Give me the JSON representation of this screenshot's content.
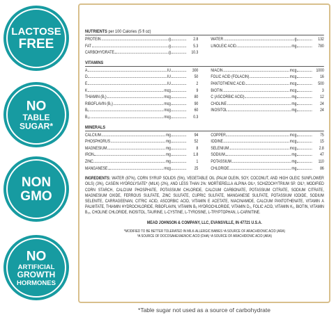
{
  "badges": [
    {
      "lines": [
        "LACTOSE",
        "FREE"
      ]
    },
    {
      "lines": [
        "NO",
        "TABLE",
        "SUGAR*"
      ]
    },
    {
      "lines": [
        "NON",
        "GMO"
      ]
    },
    {
      "lines": [
        "NO",
        "ARTIFICIAL",
        "GROWTH",
        "HORMONES"
      ]
    }
  ],
  "panel": {
    "nutrients": {
      "title": "NUTRIENTS",
      "subtitle": "per 100 Calories (5 fl oz)",
      "left": [
        {
          "name": "PROTEIN",
          "unit": "g",
          "value": "2.8"
        },
        {
          "name": "FAT",
          "unit": "g",
          "value": "5.3"
        },
        {
          "name": "CARBOHYDRATE",
          "unit": "g",
          "value": "10.3"
        }
      ],
      "right": [
        {
          "name": "WATER",
          "unit": "g",
          "value": "132"
        },
        {
          "name": "LINOLEIC ACID",
          "unit": "mg",
          "value": "780"
        }
      ]
    },
    "vitamins": {
      "title": "VITAMINS",
      "left": [
        {
          "name": "A",
          "unit": "IU",
          "value": "300"
        },
        {
          "name": "D",
          "unit": "IU",
          "value": "50"
        },
        {
          "name": "E",
          "unit": "IU",
          "value": "2"
        },
        {
          "name": "K",
          "unit": "mcg",
          "value": "9"
        },
        {
          "name": "THIAMIN (B₁)",
          "unit": "mcg",
          "value": "80"
        },
        {
          "name": "RIBOFLAVIN (B₂)",
          "unit": "mcg",
          "value": "90"
        },
        {
          "name": "B₆",
          "unit": "mcg",
          "value": "60"
        },
        {
          "name": "B₁₂",
          "unit": "mcg",
          "value": "0.3"
        }
      ],
      "right": [
        {
          "name": "NIACIN",
          "unit": "mcg",
          "value": "1000"
        },
        {
          "name": "FOLIC ACID (FOLACIN)",
          "unit": "mcg",
          "value": "16"
        },
        {
          "name": "PANTOTHENIC ACID",
          "unit": "mcg",
          "value": "500"
        },
        {
          "name": "BIOTIN",
          "unit": "mcg",
          "value": "3"
        },
        {
          "name": "C (ASCORBIC ACID)",
          "unit": "mg",
          "value": "12"
        },
        {
          "name": "CHOLINE",
          "unit": "mg",
          "value": "24"
        },
        {
          "name": "INOSITOL",
          "unit": "mg",
          "value": "24"
        }
      ]
    },
    "minerals": {
      "title": "MINERALS",
      "left": [
        {
          "name": "CALCIUM",
          "unit": "mg",
          "value": "94"
        },
        {
          "name": "PHOSPHORUS",
          "unit": "mg",
          "value": "52"
        },
        {
          "name": "MAGNESIUM",
          "unit": "mg",
          "value": "8"
        },
        {
          "name": "IRON",
          "unit": "mg",
          "value": "1.8"
        },
        {
          "name": "ZINC",
          "unit": "mg",
          "value": "1"
        },
        {
          "name": "MANGANESE",
          "unit": "mcg",
          "value": "25"
        }
      ],
      "right": [
        {
          "name": "COPPER",
          "unit": "mcg",
          "value": "75"
        },
        {
          "name": "IODINE",
          "unit": "mcg",
          "value": "15"
        },
        {
          "name": "SELENIUM",
          "unit": "mcg",
          "value": "2.8"
        },
        {
          "name": "SODIUM",
          "unit": "mg",
          "value": "47"
        },
        {
          "name": "POTASSIUM",
          "unit": "mg",
          "value": "110"
        },
        {
          "name": "CHLORIDE",
          "unit": "mg",
          "value": "86"
        }
      ]
    },
    "ingredients": {
      "label": "INGREDIENTS:",
      "text": "WATER (87%), CORN SYRUP SOLIDS (5%), VEGETABLE OIL (PALM OLEIN, SOY, COCONUT, AND HIGH OLEIC SUNFLOWER OILS) (3%), CASEIN HYDROLYSATE* (MILK) (2%), AND LESS THAN 2%: MORTIERELLA ALPINA OILᵃ, SCHIZOCHYTRIUM SP. OILᵇ, MODIFIED CORN STARCH, CALCIUM PHOSPHATE, POTASSIUM CHLORIDE, CALCIUM CARBONATE, POTASSIUM CITRATE, SODIUM CITRATE, MAGNESIUM OXIDE, FERROUS SULFATE, ZINC SULFATE, CUPRIC SULFATE, MANGANESE SULFATE, POTASSIUM IODIDE, SODIUM SELENITE, CARRAGEENAN, CITRIC ACID, ASCORBIC ACID, VITAMIN E ACETATE, NIACINAMIDE, CALCIUM PANTOTHENATE, VITAMIN A PALMITATE, THIAMIN HYDROCHLORIDE, RIBOFLAVIN, VITAMIN B₆ HYDROCHLORIDE, VITAMIN D₃, FOLIC ACID, VITAMIN K₁, BIOTIN, VITAMIN B₁₂, CHOLINE CHLORIDE, INOSITOL, TAURINE, L-CYSTINE, L-TYROSINE, L-TRYPTOPHAN, L-CARNITINE."
    },
    "company": "MEAD JOHNSON & COMPANY, LLC, EVANSVILLE, IN 47721 U.S.A.",
    "footnotes": [
      "*MODIFIED TO BE BETTER TOLERATED IN MILK-ALLERGIC BABIES  ᵃA SOURCE OF ARACHIDONIC ACID (ARA)",
      "ᵇA SOURCE OF DOCOSAHEXAENOIC ACID (DHA) ᶜA SOURCE OF ARACHIDONIC ACID (ARA)"
    ]
  },
  "footer": "*Table sugar not used as a source of carbohydrate"
}
